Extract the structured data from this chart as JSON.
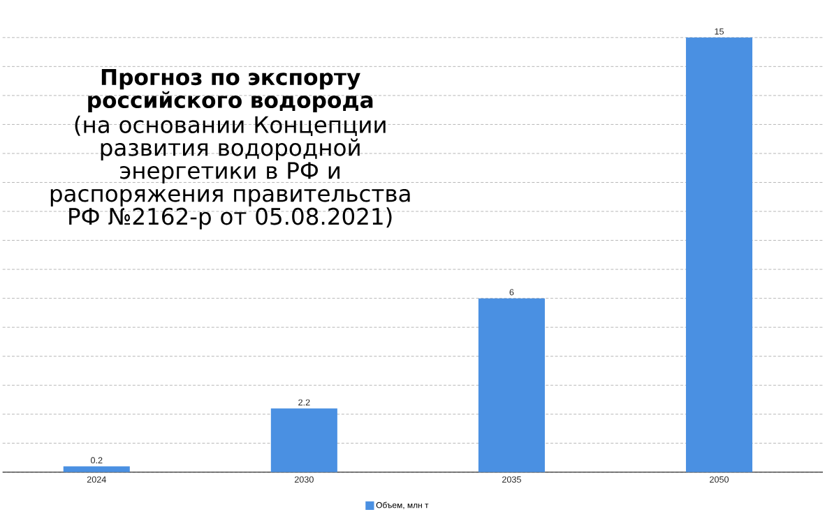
{
  "chart_data": {
    "type": "bar",
    "title": "Прогноз по экспорту российского водорода",
    "subtitle": "(на основании Концепции развития водородной энергетики в РФ и распоряжения правительства РФ №2162-р от 05.08.2021)",
    "categories": [
      "2024",
      "2030",
      "2035",
      "2050"
    ],
    "series": [
      {
        "name": "Объем, млн т",
        "color": "#4a90e2",
        "values": [
          0.2,
          2.2,
          6,
          15
        ]
      }
    ],
    "grid": "y",
    "legend": "bottom",
    "tick_labels": "x",
    "data_labels": true
  }
}
